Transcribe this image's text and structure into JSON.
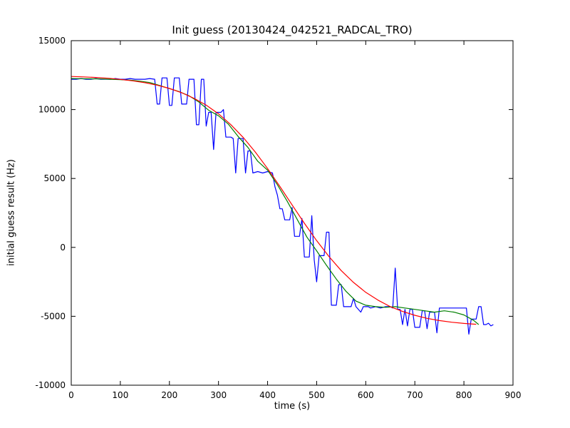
{
  "chart_data": {
    "type": "line",
    "title": "Init guess (20130424_042521_RADCAL_TRO)",
    "xlabel": "time (s)",
    "ylabel": "initial guess result (Hz)",
    "xlim": [
      0,
      900
    ],
    "ylim": [
      -10000,
      15000
    ],
    "xticks": [
      0,
      100,
      200,
      300,
      400,
      500,
      600,
      700,
      800,
      900
    ],
    "yticks": [
      -10000,
      -5000,
      0,
      5000,
      10000,
      15000
    ],
    "grid": false,
    "legend": "none",
    "background_color": "#ffffff",
    "frame_color": "#000000",
    "series": [
      {
        "name": "raw-initial-guess-blue",
        "color": "#0000ff",
        "points": [
          [
            0,
            12200
          ],
          [
            10,
            12200
          ],
          [
            20,
            12250
          ],
          [
            30,
            12200
          ],
          [
            40,
            12200
          ],
          [
            50,
            12250
          ],
          [
            60,
            12200
          ],
          [
            70,
            12200
          ],
          [
            80,
            12200
          ],
          [
            90,
            12250
          ],
          [
            100,
            12200
          ],
          [
            110,
            12200
          ],
          [
            120,
            12250
          ],
          [
            130,
            12200
          ],
          [
            140,
            12200
          ],
          [
            150,
            12200
          ],
          [
            160,
            12250
          ],
          [
            170,
            12200
          ],
          [
            175,
            10400
          ],
          [
            180,
            10400
          ],
          [
            185,
            12300
          ],
          [
            195,
            12300
          ],
          [
            200,
            10300
          ],
          [
            205,
            10300
          ],
          [
            210,
            12300
          ],
          [
            220,
            12300
          ],
          [
            225,
            10400
          ],
          [
            235,
            10400
          ],
          [
            240,
            12200
          ],
          [
            250,
            12200
          ],
          [
            255,
            8900
          ],
          [
            260,
            8900
          ],
          [
            265,
            12200
          ],
          [
            270,
            12200
          ],
          [
            275,
            8800
          ],
          [
            280,
            9800
          ],
          [
            285,
            9800
          ],
          [
            290,
            7100
          ],
          [
            295,
            9800
          ],
          [
            305,
            9800
          ],
          [
            310,
            10000
          ],
          [
            315,
            8000
          ],
          [
            325,
            8000
          ],
          [
            330,
            7900
          ],
          [
            335,
            5400
          ],
          [
            340,
            7900
          ],
          [
            350,
            7900
          ],
          [
            355,
            5400
          ],
          [
            360,
            7000
          ],
          [
            365,
            7000
          ],
          [
            370,
            5400
          ],
          [
            380,
            5500
          ],
          [
            390,
            5400
          ],
          [
            400,
            5500
          ],
          [
            410,
            5400
          ],
          [
            415,
            4400
          ],
          [
            420,
            3800
          ],
          [
            425,
            2800
          ],
          [
            430,
            2800
          ],
          [
            435,
            2000
          ],
          [
            445,
            2000
          ],
          [
            450,
            2900
          ],
          [
            455,
            800
          ],
          [
            465,
            800
          ],
          [
            470,
            2100
          ],
          [
            475,
            -700
          ],
          [
            485,
            -700
          ],
          [
            490,
            2300
          ],
          [
            495,
            -900
          ],
          [
            500,
            -2500
          ],
          [
            505,
            -600
          ],
          [
            515,
            -600
          ],
          [
            520,
            1100
          ],
          [
            525,
            1100
          ],
          [
            530,
            -4200
          ],
          [
            540,
            -4200
          ],
          [
            545,
            -2700
          ],
          [
            550,
            -2700
          ],
          [
            555,
            -4300
          ],
          [
            570,
            -4300
          ],
          [
            575,
            -3700
          ],
          [
            580,
            -4300
          ],
          [
            590,
            -4700
          ],
          [
            595,
            -4300
          ],
          [
            605,
            -4300
          ],
          [
            610,
            -4400
          ],
          [
            620,
            -4300
          ],
          [
            630,
            -4400
          ],
          [
            640,
            -4300
          ],
          [
            650,
            -4300
          ],
          [
            655,
            -4400
          ],
          [
            660,
            -1500
          ],
          [
            665,
            -4500
          ],
          [
            670,
            -4500
          ],
          [
            675,
            -5600
          ],
          [
            680,
            -4500
          ],
          [
            685,
            -5700
          ],
          [
            690,
            -4500
          ],
          [
            695,
            -4500
          ],
          [
            700,
            -5800
          ],
          [
            710,
            -5800
          ],
          [
            715,
            -4600
          ],
          [
            720,
            -4600
          ],
          [
            725,
            -5900
          ],
          [
            730,
            -4700
          ],
          [
            740,
            -4700
          ],
          [
            745,
            -6200
          ],
          [
            750,
            -4400
          ],
          [
            760,
            -4400
          ],
          [
            770,
            -4400
          ],
          [
            780,
            -4400
          ],
          [
            790,
            -4400
          ],
          [
            800,
            -4400
          ],
          [
            805,
            -4400
          ],
          [
            810,
            -6300
          ],
          [
            815,
            -5200
          ],
          [
            825,
            -5200
          ],
          [
            830,
            -4300
          ],
          [
            835,
            -4300
          ],
          [
            840,
            -5600
          ],
          [
            845,
            -5600
          ],
          [
            850,
            -5500
          ],
          [
            855,
            -5700
          ],
          [
            860,
            -5600
          ]
        ]
      },
      {
        "name": "smoothed-guess-green",
        "color": "#008000",
        "points": [
          [
            0,
            12250
          ],
          [
            20,
            12240
          ],
          [
            40,
            12230
          ],
          [
            60,
            12220
          ],
          [
            80,
            12200
          ],
          [
            100,
            12170
          ],
          [
            120,
            12130
          ],
          [
            140,
            12060
          ],
          [
            160,
            11960
          ],
          [
            180,
            11750
          ],
          [
            200,
            11520
          ],
          [
            220,
            11300
          ],
          [
            240,
            11000
          ],
          [
            260,
            10550
          ],
          [
            280,
            9950
          ],
          [
            300,
            9550
          ],
          [
            320,
            8950
          ],
          [
            340,
            8050
          ],
          [
            360,
            7250
          ],
          [
            380,
            6250
          ],
          [
            400,
            5600
          ],
          [
            420,
            4550
          ],
          [
            440,
            3350
          ],
          [
            460,
            2050
          ],
          [
            480,
            750
          ],
          [
            500,
            -250
          ],
          [
            520,
            -1300
          ],
          [
            540,
            -2300
          ],
          [
            560,
            -3200
          ],
          [
            580,
            -3900
          ],
          [
            600,
            -4200
          ],
          [
            620,
            -4300
          ],
          [
            640,
            -4350
          ],
          [
            660,
            -4300
          ],
          [
            680,
            -4400
          ],
          [
            700,
            -4500
          ],
          [
            720,
            -4600
          ],
          [
            740,
            -4700
          ],
          [
            760,
            -4600
          ],
          [
            780,
            -4700
          ],
          [
            800,
            -4900
          ],
          [
            820,
            -5300
          ],
          [
            830,
            -5600
          ]
        ]
      },
      {
        "name": "sigmoid-fit-red",
        "color": "#ff0000",
        "points": [
          [
            0,
            12400
          ],
          [
            25,
            12370
          ],
          [
            50,
            12330
          ],
          [
            75,
            12270
          ],
          [
            100,
            12190
          ],
          [
            125,
            12085
          ],
          [
            150,
            11950
          ],
          [
            175,
            11770
          ],
          [
            200,
            11530
          ],
          [
            225,
            11220
          ],
          [
            250,
            10820
          ],
          [
            275,
            10320
          ],
          [
            300,
            9690
          ],
          [
            325,
            8910
          ],
          [
            350,
            7990
          ],
          [
            375,
            6920
          ],
          [
            400,
            5720
          ],
          [
            425,
            4420
          ],
          [
            450,
            3080
          ],
          [
            475,
            1750
          ],
          [
            500,
            490
          ],
          [
            525,
            -660
          ],
          [
            550,
            -1680
          ],
          [
            575,
            -2540
          ],
          [
            600,
            -3260
          ],
          [
            625,
            -3830
          ],
          [
            650,
            -4300
          ],
          [
            675,
            -4650
          ],
          [
            700,
            -4930
          ],
          [
            725,
            -5150
          ],
          [
            750,
            -5310
          ],
          [
            775,
            -5430
          ],
          [
            800,
            -5520
          ],
          [
            825,
            -5580
          ]
        ]
      }
    ]
  }
}
